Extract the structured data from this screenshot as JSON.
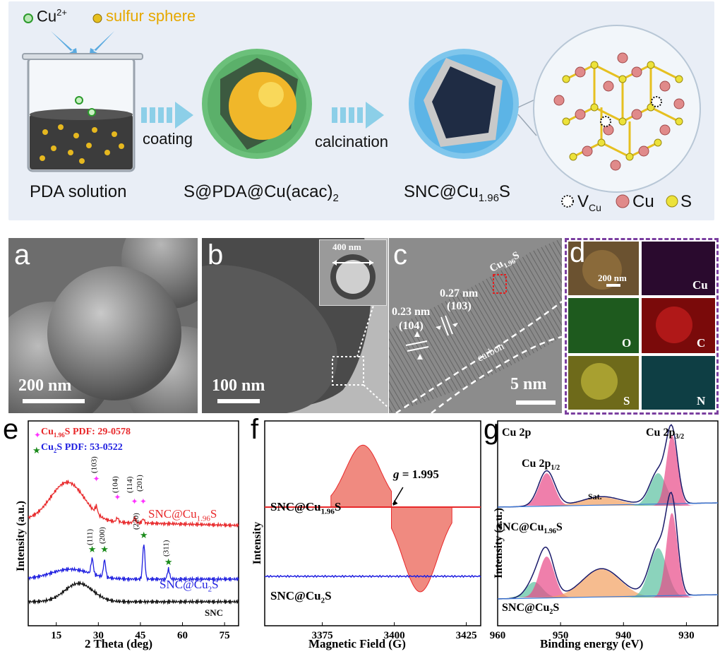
{
  "schematic": {
    "legend_cu": "Cu",
    "legend_cu_sup": "2+",
    "legend_sulfur": "sulfur sphere",
    "step1_label": "PDA solution",
    "arrow1_label": "coating",
    "step2_label_main": "S@PDA@Cu(acac)",
    "step2_label_sub": "2",
    "arrow2_label": "calcination",
    "step3_label_main": "SNC@Cu",
    "step3_label_sub": "1.96",
    "step3_label_end": "S",
    "legend_v": "V",
    "legend_v_sub": "Cu",
    "legend_cu_atom": "Cu",
    "legend_s_atom": "S"
  },
  "panel_a": {
    "letter": "a",
    "scale": "200 nm"
  },
  "panel_b": {
    "letter": "b",
    "scale": "100 nm",
    "inset_scale": "400 nm"
  },
  "panel_c": {
    "letter": "c",
    "scale": "5 nm",
    "d1": "0.27 nm",
    "d1_hkl": "(103)",
    "d2": "0.23 nm",
    "d2_hkl": "(104)",
    "phase_main": "Cu",
    "phase_sub": "1.96",
    "phase_end": "S",
    "carbon": "carbon"
  },
  "panel_d": {
    "letter": "d",
    "scale": "200 nm",
    "maps": [
      "Cu",
      "O",
      "C",
      "S",
      "N"
    ]
  },
  "panel_e": {
    "letter": "e",
    "legend1_main": "Cu",
    "legend1_sub": "1.96",
    "legend1_end": "S PDF: 29-0578",
    "legend2_main": "Cu",
    "legend2_sub": "2",
    "legend2_end": "S PDF: 53-0522",
    "ylabel": "Intensity (a.u.)",
    "xlabel": "2 Theta (deg)"
  },
  "panel_f": {
    "letter": "f",
    "g_label": "g = 1.995",
    "s1_main": "SNC@Cu",
    "s1_sub": "1.96",
    "s1_end": "S",
    "s2_main": "SNC@Cu",
    "s2_sub": "2",
    "s2_end": "S",
    "ylabel": "Intensity",
    "xlabel": "Magnetic Field (G)"
  },
  "panel_g": {
    "letter": "g",
    "lbl_cu2p": "Cu 2p",
    "lbl_32": "Cu 2p",
    "lbl_32_sub": "3/2",
    "lbl_12": "Cu 2p",
    "lbl_12_sub": "1/2",
    "sat": "Sat.",
    "s1_main": "SNC@Cu",
    "s1_sub": "1.96",
    "s1_end": "S",
    "s2_main": "SNC@Cu",
    "s2_sub": "2",
    "s2_end": "S",
    "ylabel": "Intensity (a.u.)",
    "xlabel": "Binding energy (eV)"
  },
  "colors": {
    "red": "#e8282a",
    "blue": "#1f1fe0",
    "black": "#111111",
    "magenta": "#ff33ff",
    "green": "#1a8a1a",
    "purple_border": "#7b3fa0"
  },
  "chart_data": [
    {
      "type": "line",
      "panel": "e",
      "xlabel": "2 Theta (deg)",
      "ylabel": "Intensity (a.u.)",
      "xlim": [
        5,
        80
      ],
      "xticks": [
        15,
        30,
        45,
        60,
        75
      ],
      "series": [
        {
          "name": "SNC@Cu1.96S",
          "color": "#e8282a",
          "peaks_2theta": [
            29.3,
            36.8,
            42.9,
            46.0
          ]
        },
        {
          "name": "SNC@Cu2S",
          "color": "#1f1fe0",
          "peaks_2theta": [
            27.8,
            32.2,
            46.2,
            55.0
          ]
        },
        {
          "name": "SNC",
          "color": "#111111",
          "broad_peak_2theta": 23
        }
      ],
      "annotations_cu196": [
        "(103)",
        "(104)",
        "(114)",
        "(201)"
      ],
      "annotations_cu2s": [
        "(111)",
        "(200)",
        "(220)",
        "(311)"
      ]
    },
    {
      "type": "line",
      "panel": "f",
      "xlabel": "Magnetic Field (G)",
      "ylabel": "Intensity",
      "xlim": [
        3355,
        3430
      ],
      "xticks": [
        3375,
        3400,
        3425
      ],
      "g_value": 1.995,
      "series": [
        {
          "name": "SNC@Cu1.96S",
          "color": "#e8282a",
          "signal_center_G": 3399
        },
        {
          "name": "SNC@Cu2S",
          "color": "#1f1fe0",
          "signal": "flat"
        }
      ]
    },
    {
      "type": "line",
      "panel": "g",
      "xlabel": "Binding energy (eV)",
      "ylabel": "Intensity (a.u.)",
      "xlim": [
        960,
        925
      ],
      "xticks": [
        960,
        950,
        940,
        930
      ],
      "series": [
        {
          "name": "SNC@Cu1.96S",
          "peaks_eV": [
            952.2,
            943.5,
            934.5,
            932.3
          ]
        },
        {
          "name": "SNC@Cu2S",
          "peaks_eV": [
            954.2,
            952.2,
            943.5,
            934.5,
            932.3
          ]
        }
      ]
    }
  ]
}
